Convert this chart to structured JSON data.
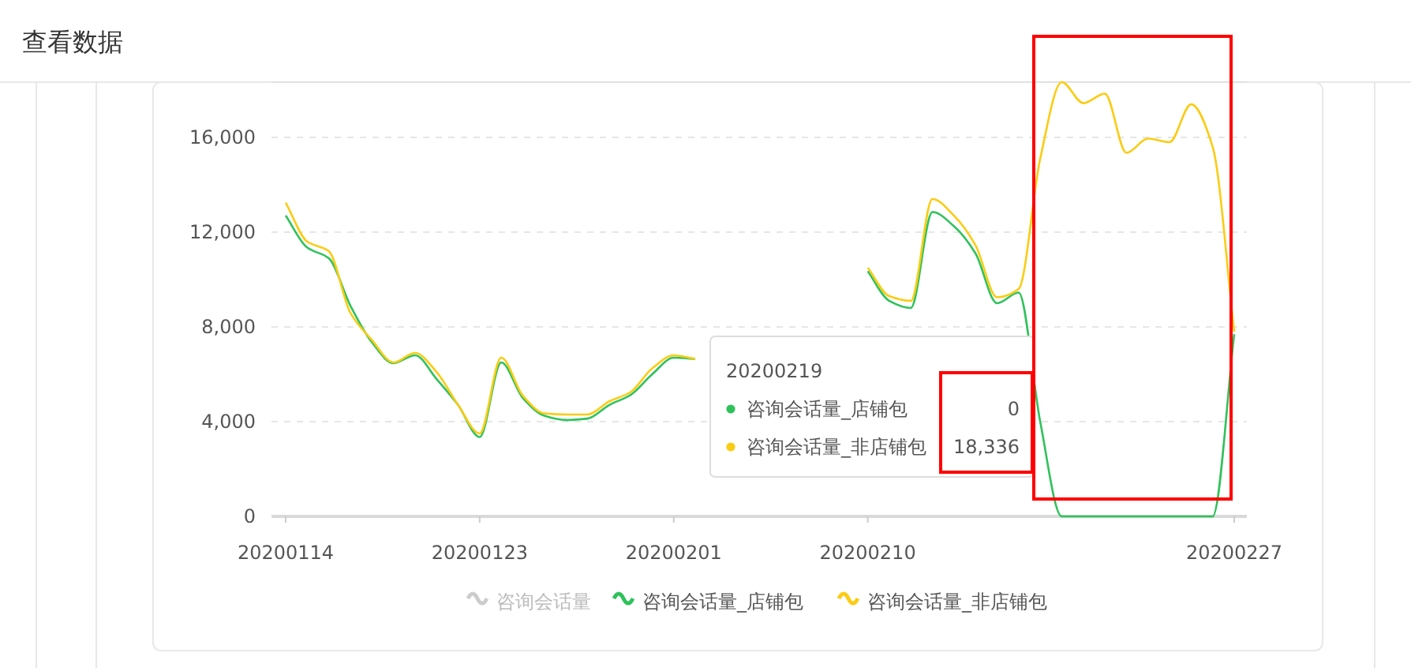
{
  "chart_data": {
    "type": "line",
    "title": "查看数据",
    "categories": [
      "20200114",
      null,
      null,
      null,
      null,
      null,
      null,
      null,
      null,
      "20200123",
      null,
      null,
      null,
      null,
      null,
      null,
      null,
      null,
      "20200201",
      null,
      null,
      null,
      null,
      null,
      null,
      null,
      null,
      "20200210",
      null,
      null,
      null,
      null,
      null,
      null,
      null,
      null,
      null,
      null,
      null,
      null,
      null,
      null,
      null,
      null,
      "20200227"
    ],
    "series": [
      {
        "name": "咨询会话量",
        "color": "#cccccc",
        "values": [
          null,
          null,
          null,
          null,
          null,
          null,
          null,
          null,
          null,
          null,
          null,
          null,
          null,
          null,
          null,
          null,
          null,
          null,
          null,
          null,
          null,
          null,
          null,
          null,
          null,
          null,
          null,
          null,
          null,
          null,
          null,
          null,
          null,
          null,
          null,
          null,
          null,
          null,
          null,
          null,
          null,
          null,
          null,
          null,
          null
        ]
      },
      {
        "name": "咨询会话量_店铺包",
        "color": "#2fc25b",
        "values": [
          12700,
          11350,
          10900,
          8900,
          7350,
          6470,
          6800,
          5800,
          4700,
          3350,
          6500,
          5000,
          4250,
          4070,
          4130,
          4700,
          5130,
          6000,
          6700,
          6650,
          null,
          null,
          null,
          null,
          null,
          null,
          null,
          10350,
          9100,
          8800,
          12850,
          12250,
          11100,
          9000,
          9450,
          4000,
          0,
          0,
          0,
          0,
          0,
          0,
          0,
          0,
          7700
        ]
      },
      {
        "name": "咨询会话量_非店铺包",
        "color": "#facc14",
        "values": [
          13250,
          11600,
          11200,
          8600,
          7450,
          6500,
          6900,
          6100,
          4700,
          3500,
          6700,
          5100,
          4350,
          4300,
          4300,
          4850,
          5250,
          6250,
          6800,
          6650,
          null,
          null,
          null,
          null,
          null,
          null,
          null,
          10500,
          9300,
          9100,
          13400,
          12700,
          11450,
          9250,
          9600,
          15100,
          18336,
          17450,
          17850,
          15350,
          15950,
          15800,
          17400,
          15600,
          7800
        ]
      }
    ],
    "ylim": [
      0,
      18336
    ],
    "yticks": [
      0,
      {
        "value": 4000,
        "label": "4,000"
      },
      {
        "value": 8000,
        "label": "8,000"
      },
      {
        "value": 12000,
        "label": "12,000"
      },
      {
        "value": 16000,
        "label": "16,000"
      }
    ],
    "grid": "y",
    "legend": "bottom",
    "marker": "none",
    "line_style": "solid",
    "annotations": [
      "20200219",
      "咨询会话量_店铺包",
      "0",
      "咨询会话量_非店铺包",
      "18,336"
    ]
  }
}
